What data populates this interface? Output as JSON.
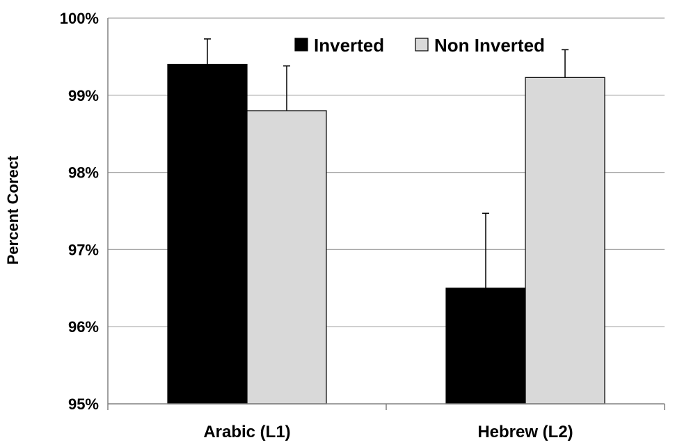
{
  "chart_data": {
    "type": "bar",
    "ylabel": "Percent Corect",
    "ylim": [
      95,
      100
    ],
    "yticks": [
      95,
      96,
      97,
      98,
      99,
      100
    ],
    "ytick_labels": [
      "95%",
      "96%",
      "97%",
      "98%",
      "99%",
      "100%"
    ],
    "categories": [
      "Arabic (L1)",
      "Hebrew (L2)"
    ],
    "series": [
      {
        "name": "Inverted",
        "color": "#000000",
        "values": [
          99.4,
          96.5
        ],
        "error": [
          0.33,
          0.97
        ]
      },
      {
        "name": "Non Inverted",
        "color": "#d9d9d9",
        "values": [
          98.8,
          99.23
        ],
        "error": [
          0.58,
          0.36
        ]
      }
    ],
    "grid": true,
    "legend_position": "top-right"
  }
}
